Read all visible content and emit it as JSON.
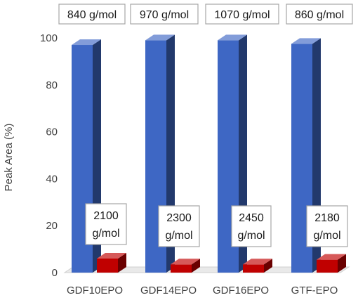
{
  "chart_data": {
    "type": "bar",
    "title": "",
    "xlabel": "",
    "ylabel": "Peak Area (%)",
    "ylim": [
      0,
      100
    ],
    "yticks": [
      0,
      20,
      40,
      60,
      80,
      100
    ],
    "grid": false,
    "style": "3d-columns",
    "categories": [
      "GDF10EPO",
      "GDF14EPO",
      "GDF16EPO",
      "GTF-EPO"
    ],
    "series": [
      {
        "color": "#3e67c4",
        "values": [
          97,
          99,
          99,
          97.5
        ]
      },
      {
        "color": "#c00000",
        "values": [
          6,
          3.5,
          3.5,
          5.5
        ]
      }
    ],
    "top_annotations": [
      "840 g/mol",
      "970 g/mol",
      "1070 g/mol",
      "860 g/mol"
    ],
    "bar_annotations": [
      [
        "2100",
        "g/mol"
      ],
      [
        "2300",
        "g/mol"
      ],
      [
        "2450",
        "g/mol"
      ],
      [
        "2180",
        "g/mol"
      ]
    ]
  }
}
